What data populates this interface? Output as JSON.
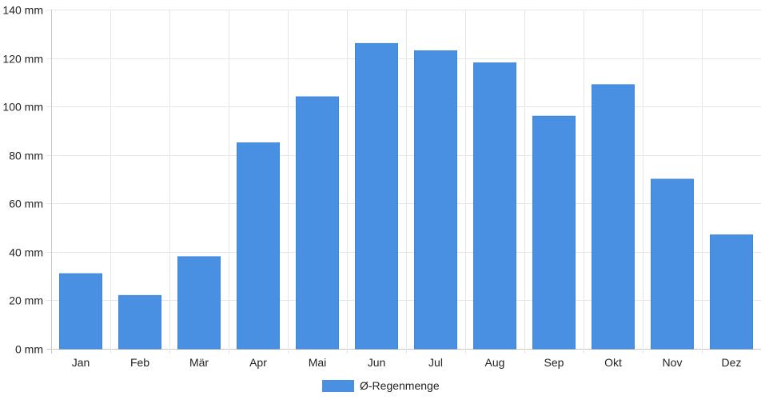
{
  "chart_data": {
    "type": "bar",
    "categories": [
      "Jan",
      "Feb",
      "Mär",
      "Apr",
      "Mai",
      "Jun",
      "Jul",
      "Aug",
      "Sep",
      "Okt",
      "Nov",
      "Dez"
    ],
    "series": [
      {
        "name": "Ø-Regenmenge",
        "color": "#4a90e2",
        "values": [
          31,
          22,
          38,
          85,
          104,
          126,
          123,
          118,
          96,
          109,
          70,
          47
        ]
      }
    ],
    "ylim": [
      0,
      140
    ],
    "yticks": [
      0,
      20,
      40,
      60,
      80,
      100,
      120,
      140
    ],
    "y_unit": "mm",
    "grid": true,
    "legend_position": "bottom-center"
  }
}
